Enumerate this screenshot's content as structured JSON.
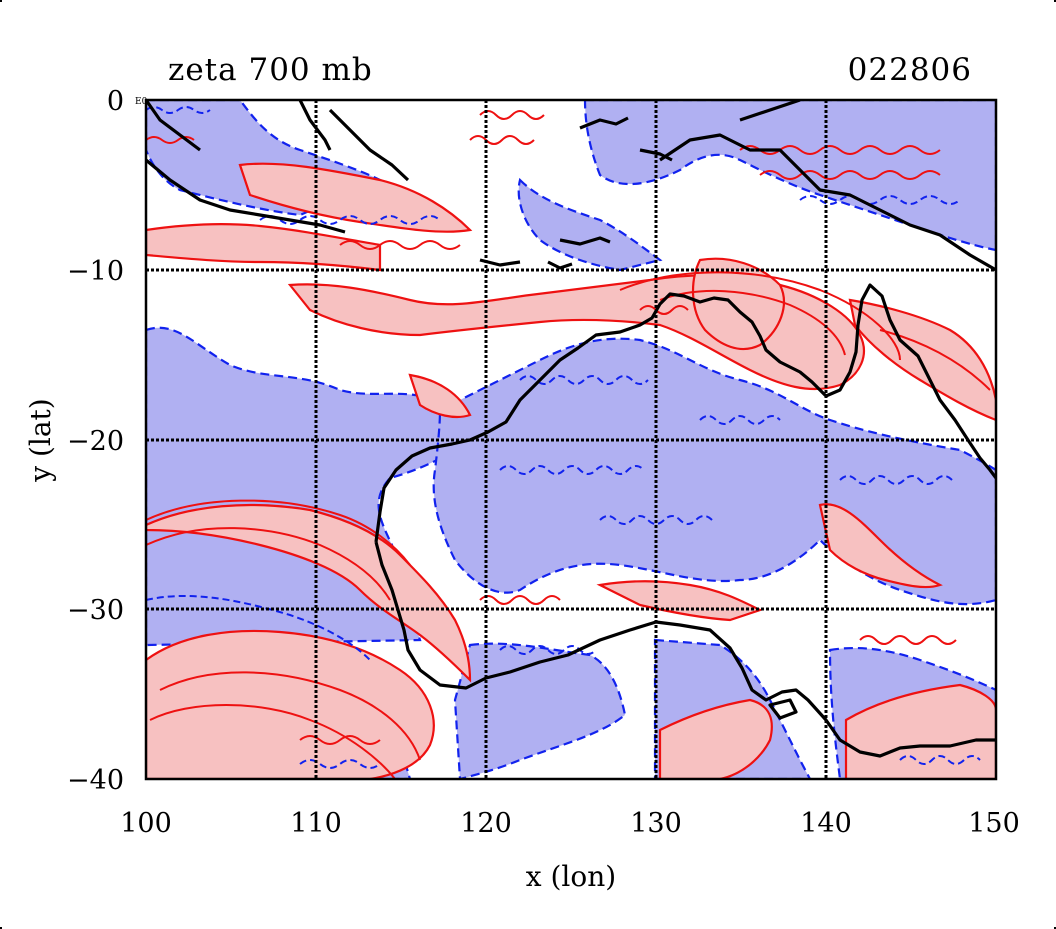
{
  "map": {
    "title_left": "zeta 700 mb",
    "title_right": "022806",
    "corner_label": "E0",
    "xlabel": "x (lon)",
    "ylabel": "y (lat)",
    "xticks": [
      "100",
      "110",
      "120",
      "130",
      "140",
      "150"
    ],
    "yticks": [
      "0",
      "−10",
      "−20",
      "−30",
      "−40"
    ],
    "xlim": [
      100,
      150
    ],
    "ylim": [
      -40,
      0
    ],
    "colors": {
      "positive_fill": "#f7c1c1",
      "positive_line": "#ee1111",
      "negative_fill": "#b0b0f2",
      "negative_line": "#1122ee",
      "coastline": "#000000",
      "grid": "#000000"
    }
  }
}
